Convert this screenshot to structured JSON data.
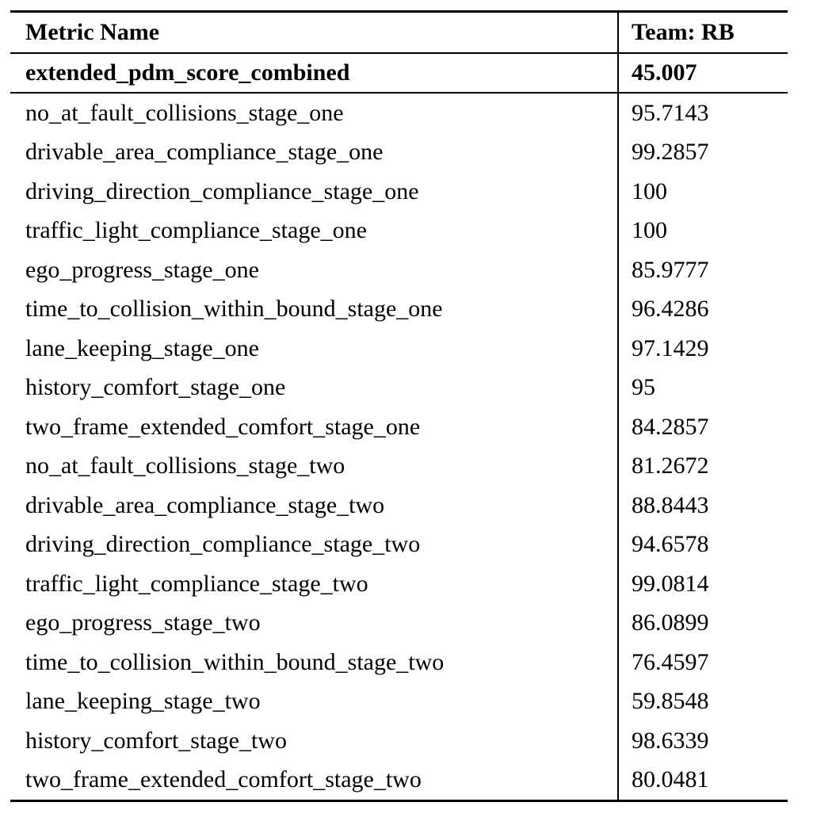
{
  "table": {
    "text_color": "#000000",
    "background": "#ffffff",
    "columns": [
      {
        "label": "Metric Name"
      },
      {
        "label": "Team: RB"
      }
    ],
    "summary_row": {
      "name": "extended_pdm_score_combined",
      "value": "45.007"
    },
    "rows": [
      {
        "name": "no_at_fault_collisions_stage_one",
        "value": "95.7143"
      },
      {
        "name": "drivable_area_compliance_stage_one",
        "value": "99.2857"
      },
      {
        "name": "driving_direction_compliance_stage_one",
        "value": "100"
      },
      {
        "name": "traffic_light_compliance_stage_one",
        "value": "100"
      },
      {
        "name": "ego_progress_stage_one",
        "value": "85.9777"
      },
      {
        "name": "time_to_collision_within_bound_stage_one",
        "value": "96.4286"
      },
      {
        "name": "lane_keeping_stage_one",
        "value": "97.1429"
      },
      {
        "name": "history_comfort_stage_one",
        "value": "95"
      },
      {
        "name": "two_frame_extended_comfort_stage_one",
        "value": "84.2857"
      },
      {
        "name": "no_at_fault_collisions_stage_two",
        "value": "81.2672"
      },
      {
        "name": "drivable_area_compliance_stage_two",
        "value": "88.8443"
      },
      {
        "name": "driving_direction_compliance_stage_two",
        "value": "94.6578"
      },
      {
        "name": "traffic_light_compliance_stage_two",
        "value": "99.0814"
      },
      {
        "name": "ego_progress_stage_two",
        "value": "86.0899"
      },
      {
        "name": "time_to_collision_within_bound_stage_two",
        "value": "76.4597"
      },
      {
        "name": "lane_keeping_stage_two",
        "value": "59.8548"
      },
      {
        "name": "history_comfort_stage_two",
        "value": "98.6339"
      },
      {
        "name": "two_frame_extended_comfort_stage_two",
        "value": "80.0481"
      }
    ]
  }
}
